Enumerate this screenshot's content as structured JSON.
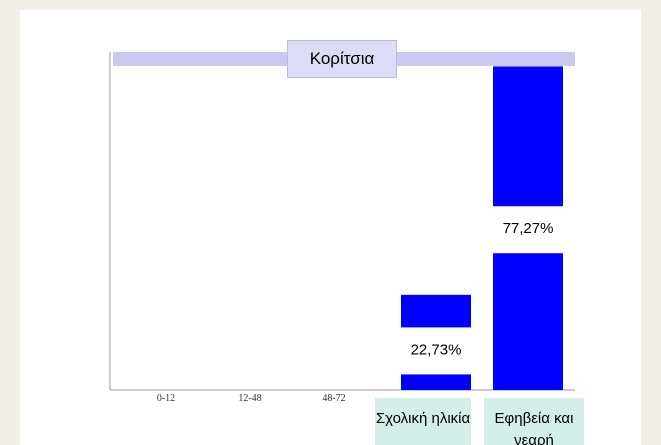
{
  "chart_data": {
    "type": "bar",
    "title": "Κορίτσια",
    "categories": [
      "0-12",
      "12-48",
      "48-72",
      "Σχολική ηλικία",
      "Εφηβεία και νεαρή"
    ],
    "values": [
      0,
      0,
      0,
      22.73,
      77.27
    ],
    "value_labels": [
      null,
      null,
      null,
      "22,73%",
      "77,27%"
    ],
    "color": "#0000ff",
    "ylim": [
      0,
      80
    ]
  }
}
